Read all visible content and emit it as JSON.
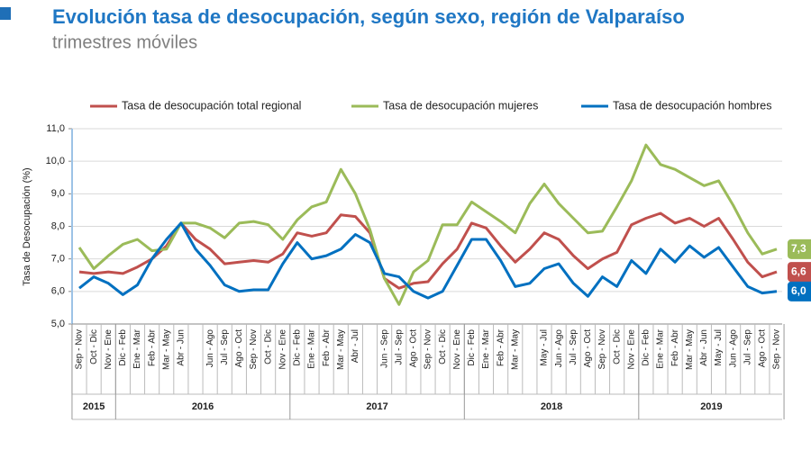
{
  "chart_data": {
    "type": "line",
    "title": "Evolución tasa de desocupación, según sexo, región de Valparaíso",
    "subtitle": "trimestres móviles",
    "y_label": "Tasa de Desocupación (%)",
    "categories": [
      "Sep - Nov",
      "Oct - Dic",
      "Nov - Ene",
      "Dic - Feb",
      "Ene - Mar",
      "Feb - Abr",
      "Mar - May",
      "Abr - Jun",
      null,
      "Jun - Ago",
      "Jul - Sep",
      "Ago - Oct",
      "Sep - Nov",
      "Oct - Dic",
      "Nov - Ene",
      "Dic - Feb",
      "Ene - Mar",
      "Feb - Abr",
      "Mar - May",
      "Abr - Jul",
      null,
      "Jun - Sep",
      "Jul - Sep",
      "Ago - Oct",
      "Sep - Nov",
      "Oct - Dic",
      "Nov - Ene",
      "Dic - Feb",
      "Ene - Mar",
      "Feb - Abr",
      "Mar - May",
      null,
      "May - Jul",
      "Jun - Ago",
      "Jul - Sep",
      "Ago - Oct",
      "Sep - Nov",
      "Oct - Dic",
      "Nov - Ene",
      "Dic - Feb",
      "Ene - Mar",
      "Feb - Abr",
      "Mar - May",
      "Abr - Jun",
      "May - Jul",
      "Jun - Ago",
      "Jul - Sep",
      "Ago - Oct",
      "Sep - Nov"
    ],
    "year_groups": [
      {
        "label": "2015",
        "count": 3
      },
      {
        "label": "2016",
        "count": 12
      },
      {
        "label": "2017",
        "count": 12
      },
      {
        "label": "2018",
        "count": 12
      },
      {
        "label": "2019",
        "count": 10
      }
    ],
    "series": [
      {
        "name": "Tasa de desocupación total regional",
        "color": "#c0504d",
        "values": [
          6.6,
          6.55,
          6.6,
          6.55,
          6.75,
          7.0,
          7.4,
          8.1,
          7.6,
          7.3,
          6.85,
          6.9,
          6.95,
          6.9,
          7.15,
          7.8,
          7.7,
          7.8,
          8.35,
          8.3,
          7.8,
          6.4,
          6.1,
          6.25,
          6.3,
          6.85,
          7.3,
          8.1,
          7.95,
          7.4,
          6.9,
          7.3,
          7.8,
          7.6,
          7.1,
          6.7,
          7.0,
          7.2,
          8.05,
          8.25,
          8.4,
          8.1,
          8.25,
          8.0,
          8.25,
          7.6,
          6.9,
          6.45,
          6.6
        ],
        "value_labels": [
          null,
          null,
          null,
          null,
          null,
          null,
          null,
          null,
          null,
          null,
          null,
          null,
          null,
          null,
          null,
          null,
          null,
          null,
          null,
          null,
          null,
          null,
          null,
          null,
          null,
          null,
          null,
          null,
          null,
          null,
          null,
          null,
          null,
          null,
          null,
          null,
          null,
          null,
          null,
          null,
          null,
          null,
          null,
          null,
          null,
          null,
          null,
          null,
          "6,6"
        ]
      },
      {
        "name": "Tasa de desocupación mujeres",
        "color": "#9bbb59",
        "values": [
          7.35,
          6.7,
          7.1,
          7.45,
          7.6,
          7.25,
          7.3,
          8.1,
          8.1,
          7.95,
          7.65,
          8.1,
          8.15,
          8.05,
          7.6,
          8.2,
          8.6,
          8.75,
          9.75,
          9.0,
          7.9,
          6.4,
          5.6,
          6.6,
          6.95,
          8.05,
          8.05,
          8.75,
          8.45,
          8.15,
          7.8,
          8.7,
          9.3,
          8.7,
          8.25,
          7.8,
          7.85,
          8.6,
          9.4,
          10.5,
          9.9,
          9.75,
          9.5,
          9.25,
          9.4,
          8.65,
          7.8,
          7.15,
          7.3
        ],
        "value_labels": [
          null,
          null,
          null,
          null,
          null,
          null,
          null,
          null,
          null,
          null,
          null,
          null,
          null,
          null,
          null,
          null,
          null,
          null,
          null,
          null,
          null,
          null,
          null,
          null,
          null,
          null,
          null,
          null,
          null,
          null,
          null,
          null,
          null,
          null,
          null,
          null,
          null,
          null,
          null,
          null,
          null,
          null,
          null,
          null,
          null,
          null,
          null,
          null,
          "7,3"
        ]
      },
      {
        "name": "Tasa de desocupación hombres",
        "color": "#0070c0",
        "values": [
          6.1,
          6.45,
          6.25,
          5.9,
          6.2,
          7.0,
          7.6,
          8.1,
          7.3,
          6.8,
          6.2,
          6.0,
          6.05,
          6.05,
          6.85,
          7.5,
          7.0,
          7.1,
          7.3,
          7.75,
          7.5,
          6.55,
          6.45,
          6.0,
          5.8,
          6.0,
          6.8,
          7.6,
          7.6,
          6.95,
          6.15,
          6.25,
          6.7,
          6.85,
          6.25,
          5.85,
          6.45,
          6.15,
          6.95,
          6.55,
          7.3,
          6.9,
          7.4,
          7.05,
          7.35,
          6.75,
          6.15,
          5.95,
          6.0
        ],
        "value_labels": [
          null,
          null,
          null,
          null,
          null,
          null,
          null,
          null,
          null,
          null,
          null,
          null,
          null,
          null,
          null,
          null,
          null,
          null,
          null,
          null,
          null,
          null,
          null,
          null,
          null,
          null,
          null,
          null,
          null,
          null,
          null,
          null,
          null,
          null,
          null,
          null,
          null,
          null,
          null,
          null,
          null,
          null,
          null,
          null,
          null,
          null,
          null,
          null,
          "6,0"
        ]
      }
    ],
    "ylim": [
      5,
      11
    ],
    "yticks": [
      {
        "value": 5,
        "label": "5,0"
      },
      {
        "value": 6,
        "label": "6,0"
      },
      {
        "value": 7,
        "label": "7,0"
      },
      {
        "value": 8,
        "label": "8,0"
      },
      {
        "value": 9,
        "label": "9,0"
      },
      {
        "value": 10,
        "label": "10,0"
      },
      {
        "value": 11,
        "label": "11,0"
      }
    ],
    "grid": true
  }
}
